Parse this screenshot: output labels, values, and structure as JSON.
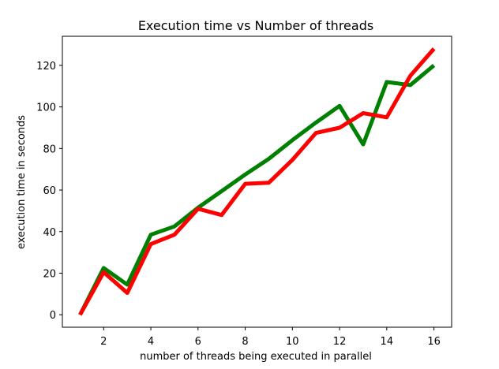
{
  "chart_data": {
    "type": "line",
    "title": "Execution time vs Number of threads",
    "xlabel": "number of threads being executed in parallel",
    "ylabel": "execution time in seconds",
    "xlim": [
      0.25,
      16.75
    ],
    "ylim": [
      -6,
      134
    ],
    "xticks": [
      2,
      4,
      6,
      8,
      10,
      12,
      14,
      16
    ],
    "yticks": [
      0,
      20,
      40,
      60,
      80,
      100,
      120
    ],
    "grid": false,
    "legend": "none",
    "x": [
      1,
      2,
      3,
      4,
      5,
      6,
      7,
      8,
      9,
      10,
      11,
      12,
      13,
      14,
      15,
      16
    ],
    "series": [
      {
        "color": "#008000",
        "values": [
          0,
          22.5,
          14.5,
          38.5,
          42.5,
          51.5,
          59.5,
          67.5,
          75,
          84,
          92.5,
          100.5,
          82,
          112,
          110.5,
          120
        ]
      },
      {
        "color": "#ff0000",
        "values": [
          0,
          20.5,
          10.5,
          34,
          38.5,
          51,
          48,
          63,
          63.5,
          74.5,
          87.5,
          90,
          97,
          95,
          115,
          128
        ]
      }
    ]
  }
}
